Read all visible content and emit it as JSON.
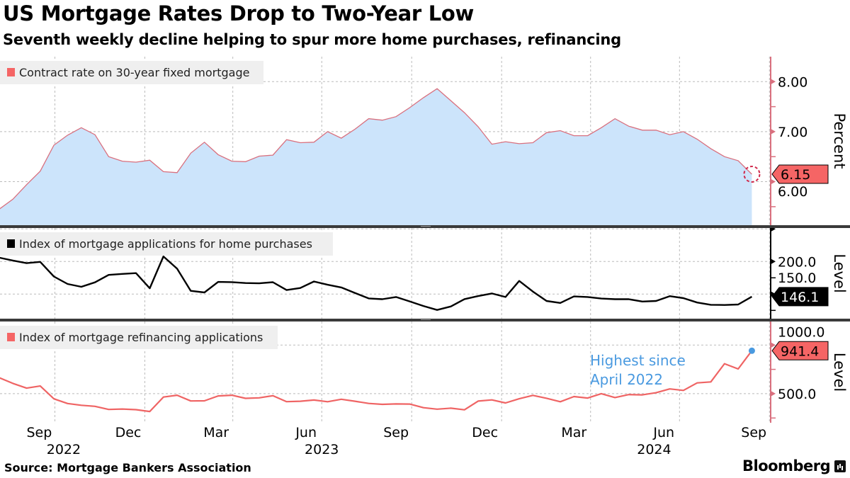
{
  "header": {
    "title": "US Mortgage Rates Drop to Two-Year Low",
    "subtitle": "Seventh weekly decline helping to spur more home purchases, refinancing"
  },
  "footer": {
    "source": "Source: Mortgage Bankers Association",
    "logo": "Bloomberg"
  },
  "colors": {
    "rate_fill": "#cce4fb",
    "rate_line": "#d9707e",
    "purchase_line": "#000000",
    "refi_line": "#ef6464",
    "tag_red": "#f56565",
    "annotation": "#4a9ae0",
    "legend_bg": "#efefef"
  },
  "chart_data": {
    "type": "line",
    "x_axis": {
      "ticks": [
        {
          "date": "2022-09-15",
          "label": "Sep"
        },
        {
          "date": "2022-12-15",
          "label": "Dec"
        },
        {
          "date": "2023-03-15",
          "label": "Mar"
        },
        {
          "date": "2023-06-15",
          "label": "Jun"
        },
        {
          "date": "2023-09-15",
          "label": "Sep"
        },
        {
          "date": "2023-12-15",
          "label": "Dec"
        },
        {
          "date": "2024-03-15",
          "label": "Mar"
        },
        {
          "date": "2024-06-15",
          "label": "Jun"
        },
        {
          "date": "2024-09-15",
          "label": "Sep"
        }
      ],
      "years": [
        "2022",
        "2023",
        "2024"
      ],
      "xlim": [
        "2022-08-06",
        "2024-10-03"
      ],
      "grid": true
    },
    "dates": [
      "2022-08-05",
      "2022-08-19",
      "2022-09-02",
      "2022-09-16",
      "2022-09-30",
      "2022-10-14",
      "2022-10-28",
      "2022-11-11",
      "2022-11-25",
      "2022-12-09",
      "2022-12-23",
      "2023-01-06",
      "2023-01-20",
      "2023-02-03",
      "2023-02-17",
      "2023-03-03",
      "2023-03-17",
      "2023-03-31",
      "2023-04-14",
      "2023-04-28",
      "2023-05-12",
      "2023-05-26",
      "2023-06-09",
      "2023-06-23",
      "2023-07-07",
      "2023-07-21",
      "2023-08-04",
      "2023-08-18",
      "2023-09-01",
      "2023-09-15",
      "2023-09-29",
      "2023-10-13",
      "2023-10-27",
      "2023-11-10",
      "2023-11-24",
      "2023-12-08",
      "2023-12-22",
      "2024-01-05",
      "2024-01-19",
      "2024-02-02",
      "2024-02-16",
      "2024-03-01",
      "2024-03-15",
      "2024-03-29",
      "2024-04-12",
      "2024-04-26",
      "2024-05-10",
      "2024-05-24",
      "2024-06-07",
      "2024-06-21",
      "2024-07-05",
      "2024-07-19",
      "2024-08-02",
      "2024-08-16",
      "2024-08-30",
      "2024-09-13"
    ],
    "panels": [
      {
        "type": "area",
        "legend": "Contract rate on 30-year fixed mortgage",
        "axis_title": "Percent",
        "ylim": [
          5.13,
          8.5
        ],
        "y_ticks": [
          6,
          7,
          8
        ],
        "y_tick_labels": [
          "6.00",
          "7.00",
          "8.00"
        ],
        "y_minor": [
          5.5,
          6.5,
          7.5
        ],
        "values": [
          5.45,
          5.65,
          5.94,
          6.21,
          6.73,
          6.93,
          7.08,
          6.94,
          6.5,
          6.41,
          6.39,
          6.43,
          6.2,
          6.18,
          6.57,
          6.79,
          6.54,
          6.41,
          6.4,
          6.51,
          6.53,
          6.84,
          6.78,
          6.79,
          7.0,
          6.87,
          7.05,
          7.26,
          7.23,
          7.3,
          7.48,
          7.68,
          7.86,
          7.62,
          7.38,
          7.1,
          6.75,
          6.8,
          6.76,
          6.78,
          6.98,
          7.02,
          6.92,
          6.92,
          7.08,
          7.26,
          7.11,
          7.03,
          7.03,
          6.94,
          7.0,
          6.85,
          6.66,
          6.5,
          6.42,
          6.15
        ],
        "last_label": "6.15",
        "last_value": 6.15
      },
      {
        "type": "line",
        "legend": "Index of mortgage applications for home purchases",
        "axis_title": "Level",
        "ylim": [
          112.3,
          251.4
        ],
        "y_ticks": [
          150,
          200,
          250
        ],
        "y_tick_labels": [
          "150.0",
          "200.0",
          ""
        ],
        "y_minor": [
          125,
          175
        ],
        "values": [
          206,
          201.5,
          197.5,
          199.5,
          177,
          165.6,
          161.2,
          168,
          179.5,
          181,
          182.2,
          158.9,
          207.8,
          189,
          155,
          152.5,
          168.7,
          168.4,
          167,
          166.5,
          168.3,
          156.2,
          159.4,
          169.3,
          164.4,
          160.2,
          151.8,
          143.4,
          142.2,
          145.6,
          138.8,
          131.7,
          125.7,
          131,
          142.3,
          147,
          151,
          145.5,
          170.2,
          153.9,
          139.5,
          136.4,
          146.4,
          145.6,
          143.2,
          142.2,
          142.2,
          138.6,
          139.5,
          146.9,
          143.8,
          137.1,
          133.6,
          133.3,
          134,
          146.1
        ],
        "last_label": "146.1",
        "last_value": 146.1
      },
      {
        "type": "line",
        "legend": "Index of mortgage refinancing applications",
        "axis_title": "Level",
        "ylim": [
          201,
          1242
        ],
        "y_ticks": [
          500,
          1000
        ],
        "y_tick_labels": [
          "500.0",
          "1000.0"
        ],
        "y_minor": [
          250,
          750
        ],
        "values": [
          665,
          606,
          557,
          579,
          447,
          399,
          381,
          370,
          338,
          342,
          336,
          317,
          465,
          484,
          425,
          427,
          477,
          484,
          452,
          457,
          479,
          418,
          422,
          435,
          417,
          443,
          422,
          400,
          390,
          395,
          393,
          356,
          341,
          351,
          334,
          424,
          436,
          405,
          448,
          483,
          453,
          417,
          470,
          455,
          500,
          460,
          491,
          488,
          510,
          549,
          534,
          611,
          621,
          808,
          754,
          941.4
        ],
        "last_label": "941.4",
        "last_value": 941.4,
        "annotation": {
          "lines": [
            "Highest since",
            "April 2022"
          ]
        }
      }
    ]
  }
}
